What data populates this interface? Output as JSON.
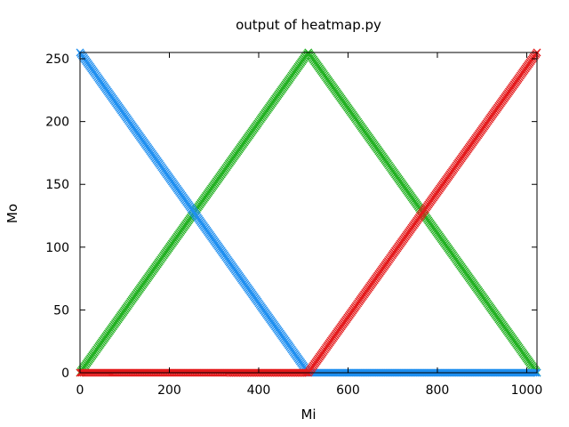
{
  "chart_data": {
    "type": "line",
    "title": "output of heatmap.py",
    "xlabel": "Mi",
    "ylabel": "Mo",
    "xlim": [
      0,
      1023
    ],
    "ylim": [
      0,
      255
    ],
    "xticks": [
      0,
      200,
      400,
      600,
      800,
      1000
    ],
    "yticks": [
      0,
      50,
      100,
      150,
      200,
      250
    ],
    "grid": false,
    "legend": "none",
    "marker": "x",
    "series": [
      {
        "color": "#e41a1c",
        "x": [
          0,
          511,
          1023
        ],
        "y": [
          0,
          0,
          255
        ]
      },
      {
        "color": "#22b122",
        "x": [
          0,
          511,
          1023
        ],
        "y": [
          0,
          255,
          0
        ]
      },
      {
        "color": "#1f8ff0",
        "x": [
          0,
          511,
          1023
        ],
        "y": [
          255,
          0,
          0
        ]
      }
    ]
  }
}
